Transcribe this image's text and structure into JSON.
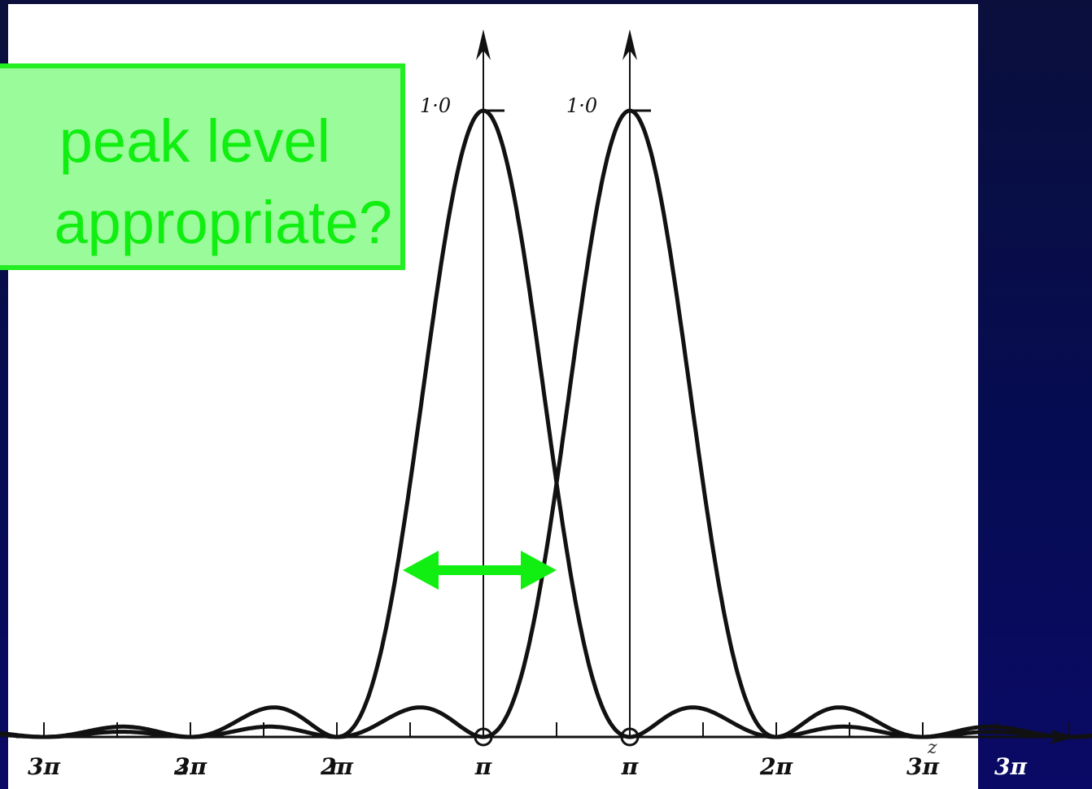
{
  "callout": {
    "line1": "peak level",
    "line2": "appropriate?"
  },
  "chart_data": {
    "type": "line",
    "title": "",
    "xlabel": "z",
    "ylabel": "",
    "ylim": [
      0,
      1.0
    ],
    "xlim": [
      -3.3,
      4.6
    ],
    "x_units": "pi",
    "series": [
      {
        "peak_at": 0,
        "peak_value": 1.0,
        "peak_label": "1·0"
      },
      {
        "peak_at": 1,
        "peak_value": 1.0,
        "peak_label": "1·0"
      }
    ],
    "x_tick_labels": [
      {
        "label": "3π",
        "x": -3
      },
      {
        "label": "2π",
        "x": -2
      },
      {
        "label": "π",
        "x": -1
      },
      {
        "label": "π",
        "x": 1
      },
      {
        "label": "2π",
        "x": 2
      },
      {
        "label": "3π",
        "x": 3
      }
    ],
    "x_tick_labels_shifted": [
      {
        "label": "3π",
        "x": -2
      },
      {
        "label": "2π",
        "x": -1
      },
      {
        "label": "π",
        "x": 0
      },
      {
        "label": "π",
        "x": 1
      },
      {
        "label": "2π",
        "x": 2
      },
      {
        "label": "3π",
        "x": 3
      }
    ],
    "x_minor_ticks": [
      -3,
      -2.5,
      -2,
      -1.5,
      -1,
      -0.5,
      0.5,
      1,
      1.5,
      2,
      2.5,
      3,
      3.5,
      4,
      4.5
    ],
    "annotation": {
      "type": "double-arrow",
      "x_from": -0.55,
      "x_to": 0.5,
      "y": 0.5,
      "color": "#11ee11"
    }
  },
  "colors": {
    "background": "#06094f",
    "panel": "#ffffff",
    "curve": "#111111",
    "callout_fill": "#9afb9a",
    "callout_border": "#22ee22",
    "callout_text": "#11ee11",
    "arrow": "#11ee11"
  }
}
